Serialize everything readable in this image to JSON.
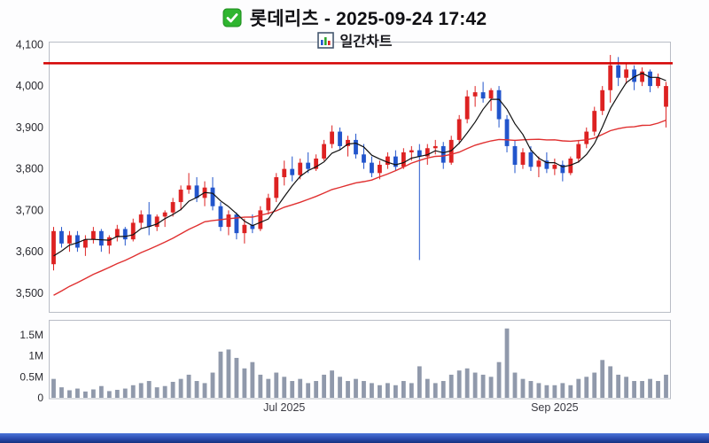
{
  "header": {
    "title": "롯데리츠 - 2025-09-24 17:42",
    "subtitle": "일간차트"
  },
  "chart_data": {
    "type": "candlestick",
    "title": "롯데리츠 - 2025-09-24 17:42",
    "subtitle": "일간차트",
    "legend_position": "none",
    "grid": false,
    "price_axis": {
      "min": 3455,
      "max": 4105,
      "ticks": [
        {
          "v": 4100,
          "label": "4,100"
        },
        {
          "v": 4000,
          "label": "4,000"
        },
        {
          "v": 3900,
          "label": "3,900"
        },
        {
          "v": 3800,
          "label": "3,800"
        },
        {
          "v": 3700,
          "label": "3,700"
        },
        {
          "v": 3600,
          "label": "3,600"
        },
        {
          "v": 3500,
          "label": "3,500"
        }
      ]
    },
    "volume_axis": {
      "min": 0,
      "max": 1.75,
      "unit": "millions",
      "ticks": [
        {
          "v": 1.5,
          "label": "1.5M"
        },
        {
          "v": 1.0,
          "label": "1M"
        },
        {
          "v": 0.5,
          "label": "0.5M"
        },
        {
          "v": 0,
          "label": "0"
        }
      ]
    },
    "x_labels": [
      {
        "label": "Jul 2025",
        "index": 29
      },
      {
        "label": "Sep 2025",
        "index": 63
      }
    ],
    "resistance_line": 4055,
    "ma_short_period": 5,
    "ma_long_period": 20,
    "ma_short_warmup": [
      3560,
      3570,
      3580,
      3590
    ],
    "ma_long_warmup": [
      3400,
      3410,
      3418,
      3427,
      3436,
      3445,
      3453,
      3462,
      3470,
      3478,
      3487,
      3495,
      3504,
      3512,
      3521,
      3530,
      3538,
      3547,
      3555,
      3560
    ],
    "colors": {
      "up": "#dd2222",
      "down": "#2255cc",
      "volume": "#9099ab",
      "ma_short": "#111111",
      "ma_long": "#e03030",
      "resistance": "#d40000",
      "panel_border": "#b9bdc6",
      "tick_text": "#2a2a30",
      "checkbox_green": "#2fb52f"
    },
    "candles_format": [
      "open",
      "high",
      "low",
      "close",
      "volume_millions"
    ],
    "candles": [
      [
        3570,
        3660,
        3555,
        3650,
        0.45
      ],
      [
        3650,
        3660,
        3610,
        3620,
        0.25
      ],
      [
        3620,
        3650,
        3600,
        3640,
        0.18
      ],
      [
        3640,
        3650,
        3600,
        3610,
        0.22
      ],
      [
        3610,
        3640,
        3590,
        3630,
        0.15
      ],
      [
        3630,
        3660,
        3620,
        3650,
        0.2
      ],
      [
        3650,
        3655,
        3600,
        3615,
        0.28
      ],
      [
        3615,
        3640,
        3595,
        3635,
        0.16
      ],
      [
        3635,
        3665,
        3625,
        3655,
        0.19
      ],
      [
        3655,
        3660,
        3615,
        3630,
        0.22
      ],
      [
        3630,
        3680,
        3625,
        3670,
        0.3
      ],
      [
        3670,
        3700,
        3655,
        3690,
        0.35
      ],
      [
        3690,
        3720,
        3640,
        3660,
        0.4
      ],
      [
        3660,
        3690,
        3650,
        3685,
        0.25
      ],
      [
        3685,
        3700,
        3660,
        3695,
        0.28
      ],
      [
        3695,
        3730,
        3685,
        3720,
        0.38
      ],
      [
        3720,
        3760,
        3700,
        3750,
        0.45
      ],
      [
        3750,
        3790,
        3740,
        3760,
        0.55
      ],
      [
        3760,
        3780,
        3720,
        3730,
        0.4
      ],
      [
        3730,
        3770,
        3710,
        3755,
        0.35
      ],
      [
        3755,
        3780,
        3700,
        3710,
        0.6
      ],
      [
        3710,
        3720,
        3650,
        3660,
        1.1
      ],
      [
        3660,
        3700,
        3640,
        3690,
        1.15
      ],
      [
        3690,
        3695,
        3630,
        3645,
        0.95
      ],
      [
        3645,
        3680,
        3620,
        3665,
        0.7
      ],
      [
        3665,
        3690,
        3645,
        3655,
        0.85
      ],
      [
        3655,
        3710,
        3650,
        3700,
        0.55
      ],
      [
        3700,
        3740,
        3690,
        3730,
        0.45
      ],
      [
        3730,
        3790,
        3720,
        3780,
        0.6
      ],
      [
        3780,
        3820,
        3760,
        3800,
        0.5
      ],
      [
        3800,
        3830,
        3770,
        3785,
        0.4
      ],
      [
        3785,
        3825,
        3775,
        3815,
        0.45
      ],
      [
        3815,
        3840,
        3790,
        3800,
        0.35
      ],
      [
        3800,
        3835,
        3795,
        3825,
        0.4
      ],
      [
        3825,
        3870,
        3820,
        3860,
        0.55
      ],
      [
        3860,
        3905,
        3850,
        3890,
        0.65
      ],
      [
        3890,
        3900,
        3845,
        3855,
        0.5
      ],
      [
        3855,
        3880,
        3830,
        3870,
        0.4
      ],
      [
        3870,
        3885,
        3825,
        3835,
        0.45
      ],
      [
        3835,
        3860,
        3800,
        3815,
        0.4
      ],
      [
        3815,
        3830,
        3780,
        3790,
        0.35
      ],
      [
        3790,
        3820,
        3775,
        3810,
        0.3
      ],
      [
        3810,
        3840,
        3800,
        3830,
        0.35
      ],
      [
        3830,
        3845,
        3795,
        3805,
        0.3
      ],
      [
        3805,
        3850,
        3800,
        3840,
        0.4
      ],
      [
        3840,
        3855,
        3820,
        3845,
        0.35
      ],
      [
        3845,
        3860,
        3580,
        3830,
        0.75
      ],
      [
        3830,
        3860,
        3810,
        3850,
        0.45
      ],
      [
        3850,
        3870,
        3835,
        3855,
        0.35
      ],
      [
        3855,
        3865,
        3800,
        3815,
        0.4
      ],
      [
        3815,
        3880,
        3810,
        3870,
        0.55
      ],
      [
        3870,
        3930,
        3860,
        3920,
        0.65
      ],
      [
        3920,
        3990,
        3910,
        3975,
        0.7
      ],
      [
        3975,
        4000,
        3950,
        3985,
        0.6
      ],
      [
        3985,
        4010,
        3960,
        3970,
        0.55
      ],
      [
        3970,
        3995,
        3940,
        3990,
        0.5
      ],
      [
        3990,
        4000,
        3900,
        3920,
        0.85
      ],
      [
        3920,
        3930,
        3840,
        3855,
        1.65
      ],
      [
        3855,
        3870,
        3790,
        3810,
        0.6
      ],
      [
        3810,
        3850,
        3800,
        3840,
        0.45
      ],
      [
        3840,
        3855,
        3795,
        3805,
        0.4
      ],
      [
        3805,
        3830,
        3780,
        3820,
        0.35
      ],
      [
        3820,
        3840,
        3790,
        3800,
        0.3
      ],
      [
        3800,
        3825,
        3785,
        3810,
        0.3
      ],
      [
        3810,
        3820,
        3770,
        3790,
        0.35
      ],
      [
        3790,
        3830,
        3785,
        3825,
        0.3
      ],
      [
        3825,
        3870,
        3815,
        3860,
        0.45
      ],
      [
        3860,
        3900,
        3850,
        3890,
        0.5
      ],
      [
        3890,
        3950,
        3880,
        3940,
        0.6
      ],
      [
        3940,
        4000,
        3930,
        3990,
        0.9
      ],
      [
        3990,
        4075,
        3960,
        4050,
        0.75
      ],
      [
        4050,
        4070,
        4000,
        4020,
        0.55
      ],
      [
        4020,
        4055,
        4005,
        4040,
        0.5
      ],
      [
        4040,
        4050,
        3990,
        4010,
        0.4
      ],
      [
        4010,
        4045,
        4000,
        4035,
        0.4
      ],
      [
        4035,
        4040,
        3985,
        4000,
        0.45
      ],
      [
        4000,
        4030,
        3995,
        4020,
        0.4
      ],
      [
        3950,
        4010,
        3900,
        4000,
        0.55
      ]
    ]
  }
}
